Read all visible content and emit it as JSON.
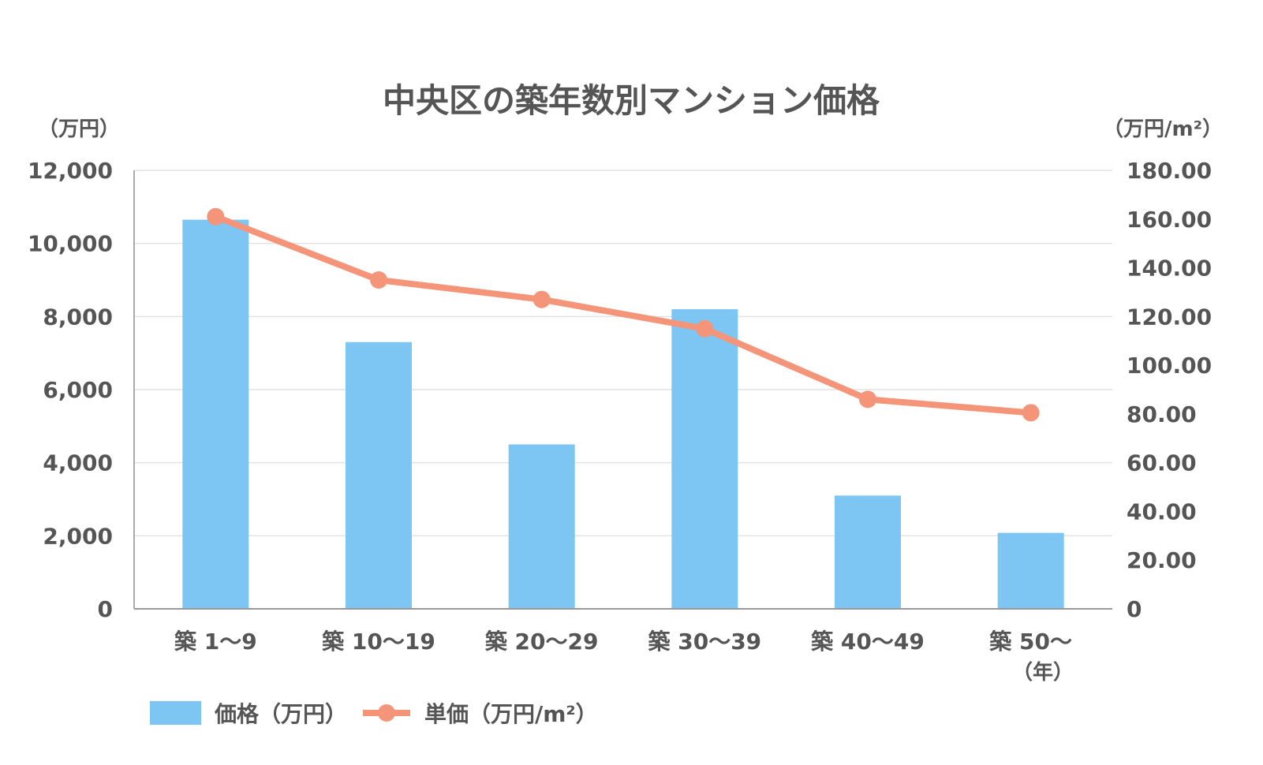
{
  "chart_data": {
    "type": "bar",
    "title": "中央区の築年数別マンション価格",
    "y_left_unit": "（万円）",
    "y_right_unit": "（万円/m²）",
    "x_unit": "（年）",
    "categories": [
      "築 1〜9",
      "築 10〜19",
      "築 20〜29",
      "築 30〜39",
      "築 40〜49",
      "築 50〜"
    ],
    "y_left_ticks": [
      "0",
      "2,000",
      "4,000",
      "6,000",
      "8,000",
      "10,000",
      "12,000"
    ],
    "y_right_ticks": [
      "0",
      "20.00",
      "40.00",
      "60.00",
      "80.00",
      "100.00",
      "120.00",
      "140.00",
      "160.00",
      "180.00"
    ],
    "ylim_left": [
      0,
      12000
    ],
    "ylim_right": [
      0,
      180
    ],
    "grid": true,
    "legend_position": "bottom-left",
    "series": [
      {
        "name": "価格（万円）",
        "type": "bar",
        "axis": "left",
        "color": "#7dc6f4",
        "values": [
          10650,
          7300,
          4500,
          8200,
          3100,
          2080
        ]
      },
      {
        "name": "単価（万円/m²）",
        "type": "line",
        "axis": "right",
        "color": "#f4957a",
        "values": [
          161,
          135,
          127,
          115,
          86,
          80.5
        ]
      }
    ]
  }
}
